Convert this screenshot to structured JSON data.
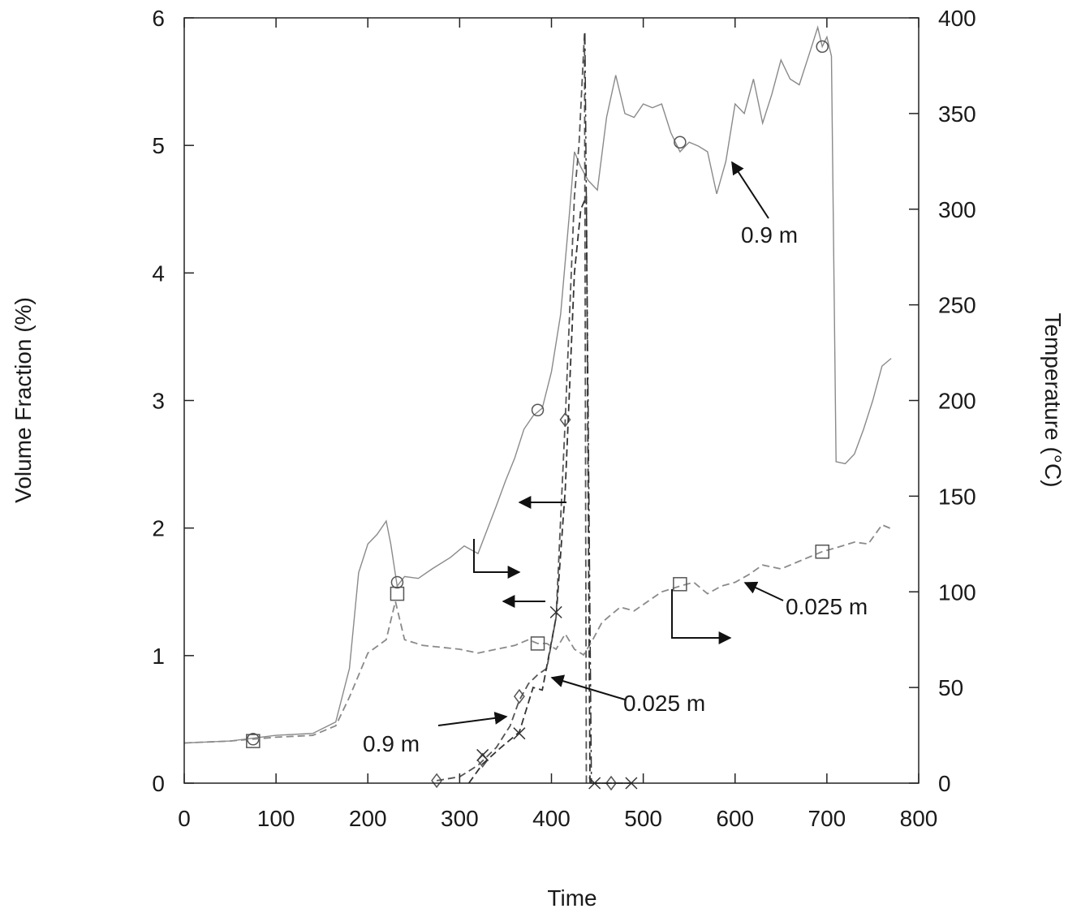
{
  "chart_data": {
    "type": "line",
    "xlabel": "Time",
    "ylabel": "Volume Fraction (%)",
    "y2label": "Temperature (°C)",
    "xlim": [
      0,
      800
    ],
    "ylim": [
      0,
      6
    ],
    "y2lim": [
      0,
      400
    ],
    "x_ticks": [
      "0",
      "100",
      "200",
      "300",
      "400",
      "500",
      "600",
      "700",
      "800"
    ],
    "y_ticks": [
      "0",
      "1",
      "2",
      "3",
      "4",
      "5",
      "6"
    ],
    "y2_ticks": [
      "0",
      "50",
      "100",
      "150",
      "200",
      "250",
      "300",
      "350",
      "400"
    ],
    "grid": false,
    "legend": "none",
    "series": [
      {
        "axis": "temperature",
        "style": "solid",
        "marker": "circle",
        "color": "#8a8a8a",
        "points": [
          [
            0,
            21
          ],
          [
            50,
            22
          ],
          [
            100,
            25
          ],
          [
            140,
            26
          ],
          [
            165,
            32
          ],
          [
            180,
            60
          ],
          [
            190,
            110
          ],
          [
            200,
            125
          ],
          [
            210,
            130
          ],
          [
            220,
            137
          ],
          [
            225,
            125
          ],
          [
            232,
            103
          ],
          [
            240,
            108
          ],
          [
            255,
            107
          ],
          [
            270,
            112
          ],
          [
            290,
            118
          ],
          [
            305,
            124
          ],
          [
            320,
            120
          ],
          [
            340,
            145
          ],
          [
            350,
            158
          ],
          [
            360,
            170
          ],
          [
            370,
            185
          ],
          [
            380,
            192
          ],
          [
            390,
            196
          ],
          [
            400,
            215
          ],
          [
            410,
            245
          ],
          [
            420,
            300
          ],
          [
            425,
            330
          ],
          [
            432,
            322
          ],
          [
            440,
            315
          ],
          [
            450,
            310
          ],
          [
            460,
            348
          ],
          [
            470,
            370
          ],
          [
            480,
            350
          ],
          [
            490,
            348
          ],
          [
            500,
            355
          ],
          [
            510,
            353
          ],
          [
            520,
            355
          ],
          [
            530,
            340
          ],
          [
            540,
            330
          ],
          [
            550,
            335
          ],
          [
            560,
            333
          ],
          [
            570,
            330
          ],
          [
            580,
            308
          ],
          [
            590,
            325
          ],
          [
            600,
            355
          ],
          [
            610,
            350
          ],
          [
            620,
            368
          ],
          [
            630,
            345
          ],
          [
            640,
            360
          ],
          [
            650,
            378
          ],
          [
            660,
            368
          ],
          [
            670,
            365
          ],
          [
            680,
            380
          ],
          [
            690,
            395
          ],
          [
            695,
            385
          ],
          [
            700,
            390
          ],
          [
            705,
            380
          ],
          [
            710,
            168
          ],
          [
            720,
            167
          ],
          [
            730,
            172
          ],
          [
            740,
            185
          ],
          [
            750,
            200
          ],
          [
            760,
            218
          ],
          [
            770,
            222
          ]
        ],
        "markers": [
          [
            75,
            23
          ],
          [
            232,
            105
          ],
          [
            385,
            195
          ],
          [
            540,
            335
          ],
          [
            695,
            385
          ]
        ]
      },
      {
        "axis": "temperature",
        "style": "dashed",
        "marker": "square",
        "color": "#8a8a8a",
        "points": [
          [
            0,
            21
          ],
          [
            50,
            22
          ],
          [
            100,
            24
          ],
          [
            140,
            25
          ],
          [
            165,
            30
          ],
          [
            180,
            45
          ],
          [
            200,
            68
          ],
          [
            220,
            75
          ],
          [
            230,
            95
          ],
          [
            240,
            75
          ],
          [
            260,
            72
          ],
          [
            280,
            71
          ],
          [
            300,
            70
          ],
          [
            320,
            68
          ],
          [
            340,
            70
          ],
          [
            360,
            72
          ],
          [
            375,
            75
          ],
          [
            385,
            73
          ],
          [
            395,
            73
          ],
          [
            405,
            70
          ],
          [
            415,
            78
          ],
          [
            425,
            70
          ],
          [
            435,
            67
          ],
          [
            445,
            75
          ],
          [
            455,
            84
          ],
          [
            465,
            88
          ],
          [
            475,
            92
          ],
          [
            490,
            90
          ],
          [
            505,
            95
          ],
          [
            520,
            100
          ],
          [
            540,
            103
          ],
          [
            555,
            105
          ],
          [
            570,
            99
          ],
          [
            585,
            103
          ],
          [
            600,
            105
          ],
          [
            615,
            109
          ],
          [
            630,
            114
          ],
          [
            650,
            112
          ],
          [
            670,
            116
          ],
          [
            695,
            121
          ],
          [
            710,
            123
          ],
          [
            730,
            126
          ],
          [
            745,
            125
          ],
          [
            760,
            135
          ],
          [
            770,
            133
          ]
        ],
        "markers": [
          [
            75,
            22
          ],
          [
            232,
            99
          ],
          [
            385,
            73
          ],
          [
            540,
            104
          ],
          [
            695,
            121
          ]
        ]
      },
      {
        "axis": "volume_fraction",
        "style": "dashed",
        "marker": "diamond",
        "color": "#555555",
        "points": [
          [
            275,
            0.02
          ],
          [
            300,
            0.05
          ],
          [
            320,
            0.14
          ],
          [
            340,
            0.28
          ],
          [
            355,
            0.45
          ],
          [
            365,
            0.65
          ],
          [
            375,
            0.78
          ],
          [
            385,
            0.85
          ],
          [
            395,
            0.9
          ],
          [
            405,
            1.3
          ],
          [
            415,
            2.85
          ],
          [
            425,
            4.6
          ],
          [
            430,
            5.0
          ],
          [
            436,
            5.88
          ],
          [
            438,
            0.0
          ],
          [
            440,
            0.0
          ],
          [
            485,
            0.0
          ]
        ],
        "markers": [
          [
            275,
            0.02
          ],
          [
            325,
            0.18
          ],
          [
            365,
            0.68
          ],
          [
            415,
            2.85
          ],
          [
            465,
            0.0
          ]
        ]
      },
      {
        "axis": "volume_fraction",
        "style": "dashed",
        "marker": "cross",
        "color": "#333333",
        "points": [
          [
            310,
            0.0
          ],
          [
            325,
            0.15
          ],
          [
            345,
            0.28
          ],
          [
            365,
            0.4
          ],
          [
            380,
            0.75
          ],
          [
            390,
            0.73
          ],
          [
            405,
            1.3
          ],
          [
            415,
            2.3
          ],
          [
            425,
            4.0
          ],
          [
            432,
            4.5
          ],
          [
            438,
            4.6
          ],
          [
            442,
            0.0
          ],
          [
            485,
            0.0
          ]
        ],
        "markers": [
          [
            325,
            0.22
          ],
          [
            365,
            0.39
          ],
          [
            405,
            1.34
          ],
          [
            447,
            0.0
          ],
          [
            487,
            0.0
          ]
        ]
      }
    ],
    "vertical_line_x": 440,
    "annotations": [
      {
        "text": "0.9 m",
        "at": [
          672,
          4.4
        ]
      },
      {
        "text": "0.025 m",
        "at": [
          708,
          1.35
        ]
      },
      {
        "text": "0.025 m",
        "at": [
          505,
          0.6
        ]
      },
      {
        "text": "0.9 m",
        "at": [
          230,
          0.3
        ]
      }
    ]
  }
}
